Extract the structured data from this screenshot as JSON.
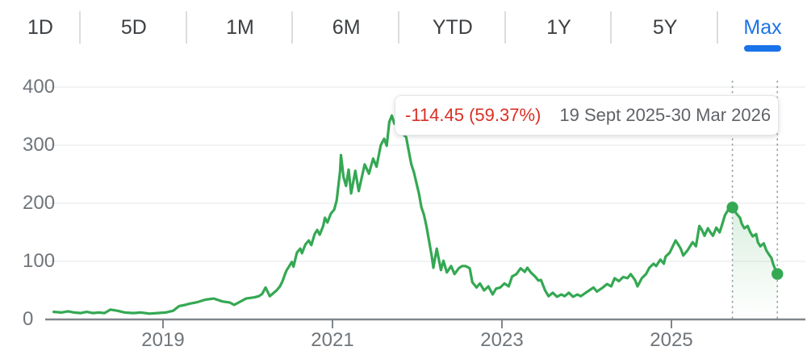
{
  "tabs": {
    "items": [
      {
        "label": "1D"
      },
      {
        "label": "5D"
      },
      {
        "label": "1M"
      },
      {
        "label": "6M"
      },
      {
        "label": "YTD"
      },
      {
        "label": "1Y"
      },
      {
        "label": "5Y"
      },
      {
        "label": "Max"
      }
    ],
    "selected": "Max",
    "selected_color": "#1a73e8",
    "text_color": "#3c4043"
  },
  "tooltip": {
    "change_text": "-114.45 (59.37%)",
    "direction_icon": "arrow-downward-icon",
    "date_range": "19 Sept 2025-30 Mar 2026",
    "change_color": "#d93025",
    "date_color": "#5f6368"
  },
  "chart_data": {
    "type": "line",
    "title": "",
    "xlabel": "",
    "ylabel": "",
    "line_color": "#34a853",
    "grid": "horizontal",
    "x_ticks": [
      2019,
      2021,
      2023,
      2025
    ],
    "y_ticks": [
      0,
      100,
      200,
      300,
      400
    ],
    "xlim": [
      2017.63,
      2026.59
    ],
    "ylim": [
      0,
      400
    ],
    "selection": {
      "start_date": "19 Sept 2025",
      "start_value": 192.77,
      "end_date": "30 Mar 2026",
      "end_value": 78.32,
      "change": -114.45,
      "change_pct": -59.37,
      "t1": 2025.72,
      "t2": 2026.25
    },
    "markers": [
      {
        "name": "range-handle-start",
        "t": 2025.72,
        "v": 192.8
      },
      {
        "name": "range-handle-end",
        "t": 2026.25,
        "v": 78.3
      }
    ],
    "series": [
      {
        "name": "price",
        "points": [
          [
            2017.71,
            13
          ],
          [
            2017.8,
            12
          ],
          [
            2017.88,
            14
          ],
          [
            2017.95,
            12
          ],
          [
            2018.03,
            11
          ],
          [
            2018.1,
            13
          ],
          [
            2018.17,
            11
          ],
          [
            2018.24,
            12
          ],
          [
            2018.31,
            11
          ],
          [
            2018.38,
            17
          ],
          [
            2018.46,
            15
          ],
          [
            2018.55,
            12
          ],
          [
            2018.65,
            11
          ],
          [
            2018.74,
            12
          ],
          [
            2018.84,
            10
          ],
          [
            2018.93,
            11
          ],
          [
            2019.03,
            12
          ],
          [
            2019.12,
            15
          ],
          [
            2019.19,
            23
          ],
          [
            2019.26,
            25
          ],
          [
            2019.31,
            27
          ],
          [
            2019.41,
            30
          ],
          [
            2019.5,
            34
          ],
          [
            2019.6,
            36
          ],
          [
            2019.7,
            31
          ],
          [
            2019.79,
            29
          ],
          [
            2019.84,
            25
          ],
          [
            2019.89,
            29
          ],
          [
            2019.98,
            36
          ],
          [
            2020.08,
            38
          ],
          [
            2020.13,
            40
          ],
          [
            2020.17,
            44
          ],
          [
            2020.21,
            55
          ],
          [
            2020.26,
            40
          ],
          [
            2020.3,
            45
          ],
          [
            2020.34,
            50
          ],
          [
            2020.38,
            57
          ],
          [
            2020.41,
            66
          ],
          [
            2020.44,
            78
          ],
          [
            2020.46,
            85
          ],
          [
            2020.49,
            92
          ],
          [
            2020.52,
            99
          ],
          [
            2020.54,
            91
          ],
          [
            2020.58,
            115
          ],
          [
            2020.62,
            122
          ],
          [
            2020.64,
            114
          ],
          [
            2020.68,
            129
          ],
          [
            2020.72,
            136
          ],
          [
            2020.75,
            128
          ],
          [
            2020.79,
            147
          ],
          [
            2020.82,
            154
          ],
          [
            2020.85,
            146
          ],
          [
            2020.89,
            161
          ],
          [
            2020.91,
            175
          ],
          [
            2020.94,
            167
          ],
          [
            2020.98,
            182
          ],
          [
            2021.02,
            189
          ],
          [
            2021.05,
            205
          ],
          [
            2021.07,
            230
          ],
          [
            2021.09,
            255
          ],
          [
            2021.1,
            283
          ],
          [
            2021.13,
            245
          ],
          [
            2021.16,
            230
          ],
          [
            2021.19,
            258
          ],
          [
            2021.22,
            217
          ],
          [
            2021.27,
            256
          ],
          [
            2021.31,
            221
          ],
          [
            2021.38,
            267
          ],
          [
            2021.43,
            251
          ],
          [
            2021.48,
            277
          ],
          [
            2021.52,
            263
          ],
          [
            2021.57,
            300
          ],
          [
            2021.61,
            311
          ],
          [
            2021.64,
            299
          ],
          [
            2021.67,
            340
          ],
          [
            2021.7,
            351
          ],
          [
            2021.73,
            337
          ],
          [
            2021.76,
            346
          ],
          [
            2021.8,
            330
          ],
          [
            2021.84,
            318
          ],
          [
            2021.87,
            314
          ],
          [
            2021.9,
            290
          ],
          [
            2021.93,
            267
          ],
          [
            2021.96,
            254
          ],
          [
            2021.99,
            235
          ],
          [
            2022.02,
            217
          ],
          [
            2022.05,
            193
          ],
          [
            2022.08,
            180
          ],
          [
            2022.11,
            160
          ],
          [
            2022.14,
            135
          ],
          [
            2022.17,
            110
          ],
          [
            2022.19,
            89
          ],
          [
            2022.23,
            122
          ],
          [
            2022.28,
            85
          ],
          [
            2022.31,
            101
          ],
          [
            2022.35,
            81
          ],
          [
            2022.4,
            92
          ],
          [
            2022.44,
            78
          ],
          [
            2022.49,
            88
          ],
          [
            2022.53,
            92
          ],
          [
            2022.57,
            92
          ],
          [
            2022.62,
            88
          ],
          [
            2022.65,
            64
          ],
          [
            2022.7,
            55
          ],
          [
            2022.74,
            62
          ],
          [
            2022.79,
            50
          ],
          [
            2022.84,
            57
          ],
          [
            2022.89,
            43
          ],
          [
            2022.93,
            53
          ],
          [
            2022.98,
            55
          ],
          [
            2023.03,
            62
          ],
          [
            2023.08,
            57
          ],
          [
            2023.12,
            74
          ],
          [
            2023.17,
            78
          ],
          [
            2023.22,
            88
          ],
          [
            2023.27,
            82
          ],
          [
            2023.3,
            89
          ],
          [
            2023.34,
            81
          ],
          [
            2023.39,
            74
          ],
          [
            2023.43,
            67
          ],
          [
            2023.46,
            68
          ],
          [
            2023.51,
            50
          ],
          [
            2023.55,
            40
          ],
          [
            2023.6,
            46
          ],
          [
            2023.65,
            39
          ],
          [
            2023.7,
            43
          ],
          [
            2023.74,
            40
          ],
          [
            2023.79,
            46
          ],
          [
            2023.84,
            39
          ],
          [
            2023.89,
            43
          ],
          [
            2023.93,
            40
          ],
          [
            2023.98,
            45
          ],
          [
            2024.03,
            50
          ],
          [
            2024.08,
            55
          ],
          [
            2024.12,
            48
          ],
          [
            2024.19,
            55
          ],
          [
            2024.24,
            61
          ],
          [
            2024.29,
            57
          ],
          [
            2024.33,
            71
          ],
          [
            2024.38,
            66
          ],
          [
            2024.43,
            73
          ],
          [
            2024.48,
            71
          ],
          [
            2024.52,
            78
          ],
          [
            2024.57,
            68
          ],
          [
            2024.6,
            57
          ],
          [
            2024.65,
            71
          ],
          [
            2024.7,
            78
          ],
          [
            2024.74,
            89
          ],
          [
            2024.79,
            96
          ],
          [
            2024.82,
            92
          ],
          [
            2024.87,
            103
          ],
          [
            2024.91,
            96
          ],
          [
            2024.93,
            108
          ],
          [
            2024.98,
            115
          ],
          [
            2025.01,
            124
          ],
          [
            2025.05,
            136
          ],
          [
            2025.08,
            129
          ],
          [
            2025.11,
            122
          ],
          [
            2025.14,
            110
          ],
          [
            2025.19,
            119
          ],
          [
            2025.22,
            126
          ],
          [
            2025.25,
            133
          ],
          [
            2025.29,
            126
          ],
          [
            2025.33,
            161
          ],
          [
            2025.36,
            154
          ],
          [
            2025.39,
            144
          ],
          [
            2025.43,
            157
          ],
          [
            2025.46,
            150
          ],
          [
            2025.49,
            144
          ],
          [
            2025.53,
            158
          ],
          [
            2025.57,
            150
          ],
          [
            2025.6,
            164
          ],
          [
            2025.63,
            179
          ],
          [
            2025.67,
            189
          ],
          [
            2025.72,
            192.8
          ],
          [
            2025.77,
            182
          ],
          [
            2025.81,
            175
          ],
          [
            2025.83,
            165
          ],
          [
            2025.86,
            157
          ],
          [
            2025.9,
            161
          ],
          [
            2025.93,
            150
          ],
          [
            2025.96,
            143
          ],
          [
            2026.0,
            147
          ],
          [
            2026.02,
            133
          ],
          [
            2026.05,
            126
          ],
          [
            2026.09,
            131
          ],
          [
            2026.12,
            119
          ],
          [
            2026.15,
            112
          ],
          [
            2026.18,
            106
          ],
          [
            2026.2,
            96
          ],
          [
            2026.22,
            88
          ],
          [
            2026.25,
            78.3
          ]
        ]
      }
    ]
  },
  "colors": {
    "line_green": "#34a853",
    "tab_blue": "#1a73e8",
    "loss_red": "#d93025",
    "axis_gray": "#80868b",
    "label_gray": "#70757a",
    "grid_gray": "#f1f3f4",
    "dash_gray": "#9aa0a6",
    "divider_gray": "#dadce0"
  }
}
